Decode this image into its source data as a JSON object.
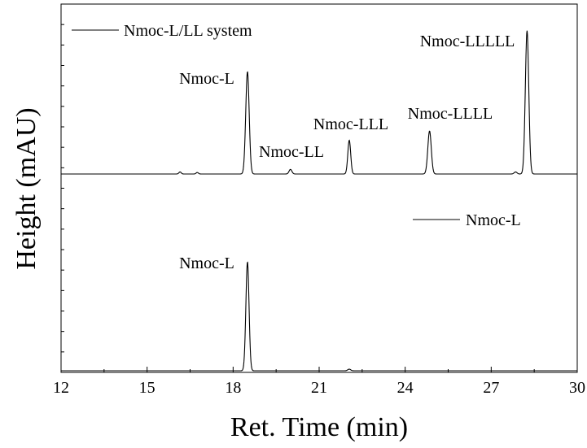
{
  "chart_data": {
    "type": "line",
    "xlabel": "Ret. Time (min)",
    "ylabel": "Height (mAU)",
    "xlim": [
      12,
      30
    ],
    "x_ticks": [
      "12",
      "15",
      "18",
      "21",
      "24",
      "27",
      "30"
    ],
    "y_ticks_shown": false,
    "grid": false,
    "series": [
      {
        "name": "Nmoc-L/LL system",
        "baseline": 0,
        "peaks": [
          {
            "x": 16.15,
            "y": 0.02,
            "w": 0.04
          },
          {
            "x": 16.75,
            "y": 0.015,
            "w": 0.04
          },
          {
            "x": 18.5,
            "y": 1.0,
            "w": 0.06
          },
          {
            "x": 20.0,
            "y": 0.045,
            "w": 0.05
          },
          {
            "x": 22.05,
            "y": 0.33,
            "w": 0.05
          },
          {
            "x": 24.85,
            "y": 0.42,
            "w": 0.06
          },
          {
            "x": 27.85,
            "y": 0.02,
            "w": 0.05
          },
          {
            "x": 28.25,
            "y": 1.4,
            "w": 0.06
          }
        ]
      },
      {
        "name": "Nmoc-L",
        "baseline": 0,
        "peaks": [
          {
            "x": 18.5,
            "y": 1.0,
            "w": 0.055
          },
          {
            "x": 22.05,
            "y": 0.015,
            "w": 0.05
          }
        ]
      }
    ],
    "annotations": [
      {
        "text": "Nmoc-L",
        "series": 0
      },
      {
        "text": "Nmoc-LL",
        "series": 0
      },
      {
        "text": "Nmoc-LLL",
        "series": 0
      },
      {
        "text": "Nmoc-LLLL",
        "series": 0
      },
      {
        "text": "Nmoc-LLLLL",
        "series": 0
      },
      {
        "text": "Nmoc-L",
        "series": 1
      }
    ],
    "legends": [
      {
        "label": "Nmoc-L/LL system"
      },
      {
        "label": "Nmoc-L"
      }
    ]
  }
}
